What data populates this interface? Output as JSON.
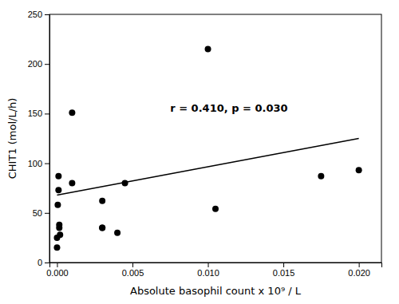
{
  "chart_data": {
    "type": "scatter",
    "xlabel": "Absolute basophil count x 10⁹ / L",
    "ylabel": "CHIT1 (mol/L/h)",
    "annotations": [
      {
        "text": "r = 0.410, p = 0.030",
        "x": 0.0075,
        "y": 155
      }
    ],
    "series": [
      {
        "type": "scatter",
        "color": "black",
        "x": [
          0.0,
          0.0,
          5e-05,
          0.0001,
          0.0001,
          0.00015,
          0.00015,
          0.0002,
          0.001,
          0.001,
          0.003,
          0.003,
          0.003,
          0.004,
          0.0045,
          0.01,
          0.0105,
          0.0175,
          0.02
        ],
        "values": [
          15,
          25,
          58,
          73,
          87,
          35,
          38,
          28,
          151,
          80,
          35,
          35,
          62,
          30,
          80,
          215,
          54,
          87,
          93
        ]
      },
      {
        "type": "line",
        "color": "black",
        "x": [
          0.0,
          0.02
        ],
        "values": [
          68.0,
          125.0
        ]
      }
    ],
    "xlim": [
      -0.0005,
      0.0215
    ],
    "ylim": [
      0,
      250
    ],
    "xticks": [
      {
        "value": 0.0,
        "label": "0.000"
      },
      {
        "value": 0.005,
        "label": "0.005"
      },
      {
        "value": 0.01,
        "label": "0.010"
      },
      {
        "value": 0.015,
        "label": "0.015"
      },
      {
        "value": 0.02,
        "label": "0.020"
      }
    ],
    "yticks": [
      0,
      50,
      100,
      150,
      200,
      250
    ],
    "grid": false
  }
}
